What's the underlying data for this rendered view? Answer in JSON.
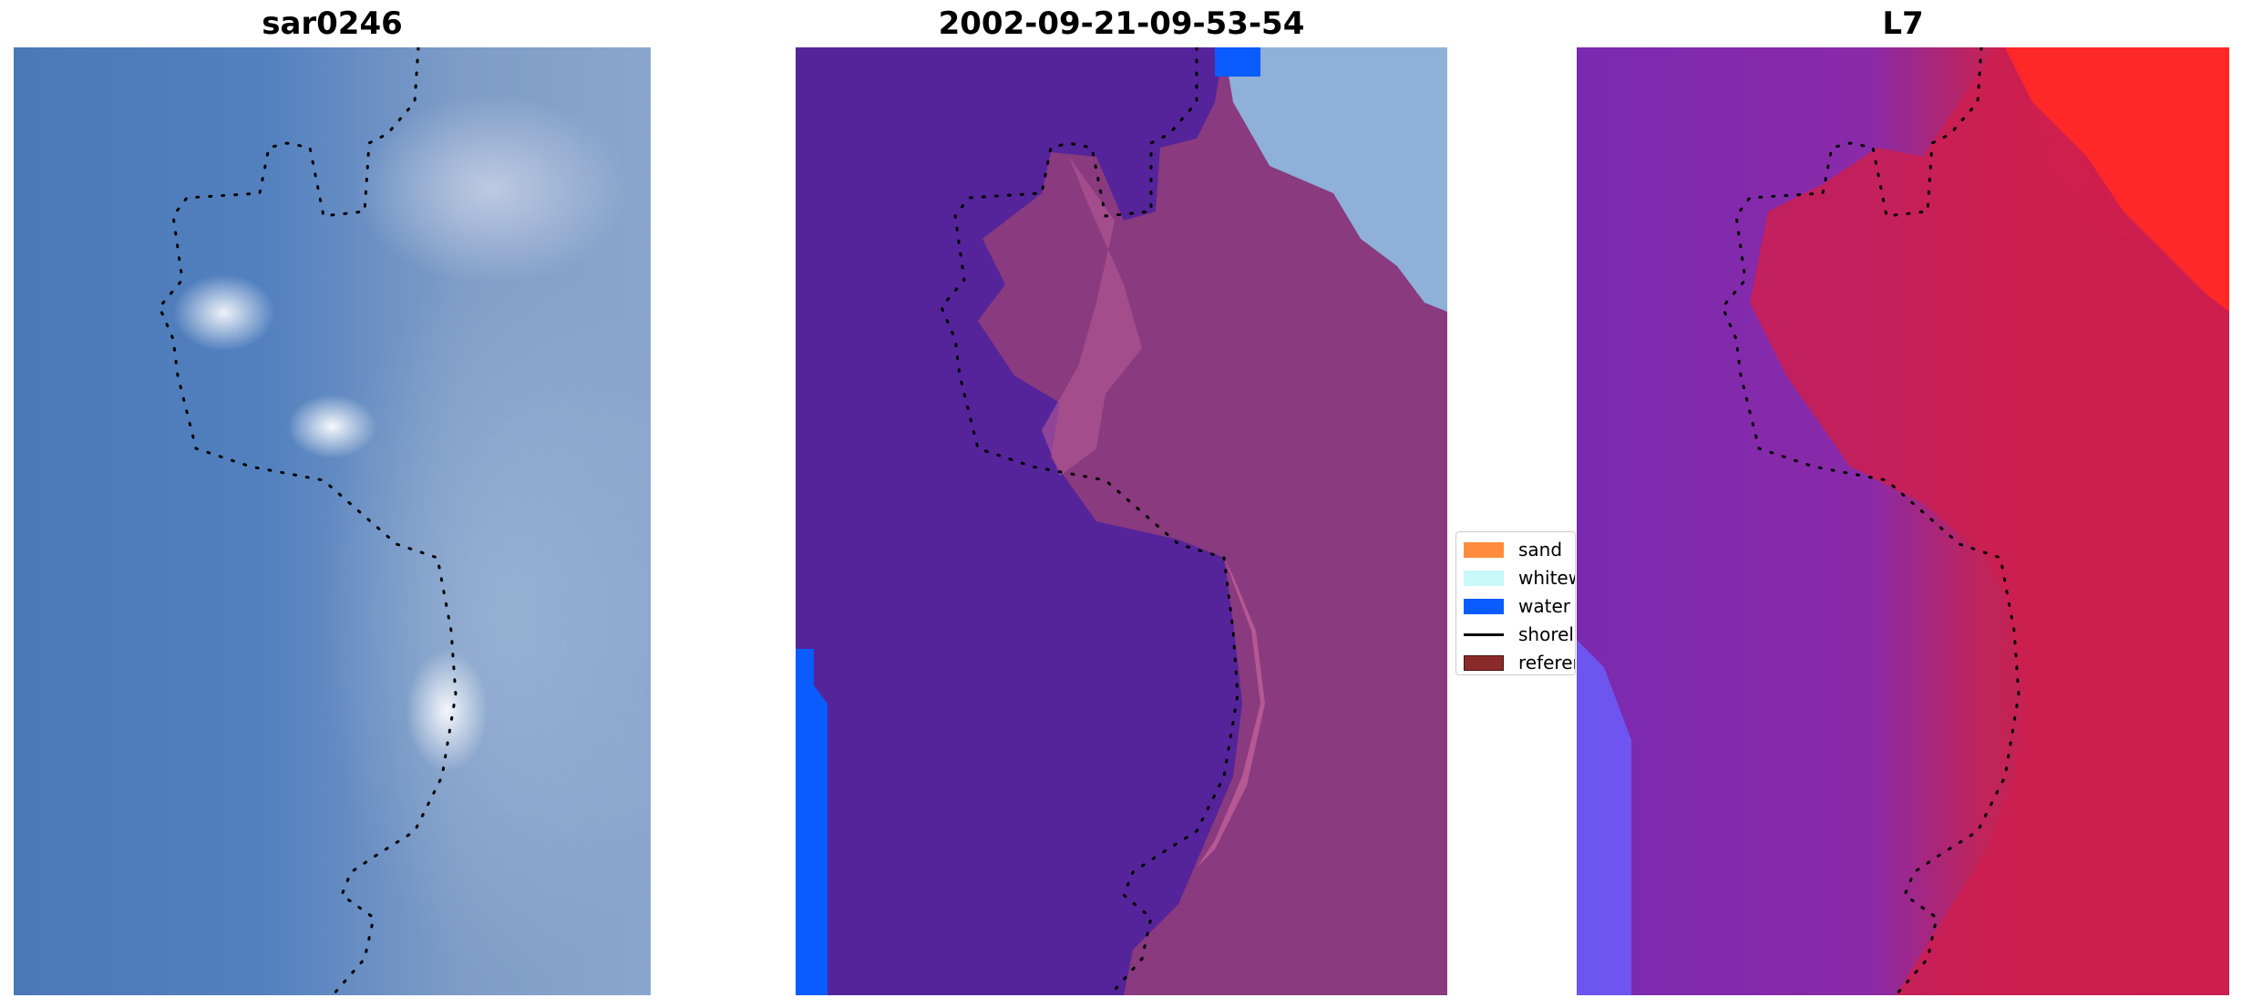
{
  "panels": [
    {
      "title": "sar0246",
      "icon": "rgb-satellite-image"
    },
    {
      "title": "2002-09-21-09-53-54",
      "icon": "classified-image"
    },
    {
      "title": "L7",
      "icon": "mndwi-image"
    }
  ],
  "legend": {
    "items": [
      {
        "label": "sand",
        "color": "#ff8c3c",
        "kind": "patch"
      },
      {
        "label": "whitewater",
        "color": "#c8f8f8",
        "kind": "patch"
      },
      {
        "label": "water",
        "color": "#0a5cff",
        "kind": "patch"
      },
      {
        "label": "shoreline",
        "color": "#000000",
        "kind": "line"
      },
      {
        "label": "reference shoreline",
        "color": "#8b2a2a",
        "kind": "patch"
      }
    ]
  },
  "colors": {
    "water_class": "#0a5cff",
    "other_class": "#55249a",
    "land_class": "#8a3a7e"
  }
}
